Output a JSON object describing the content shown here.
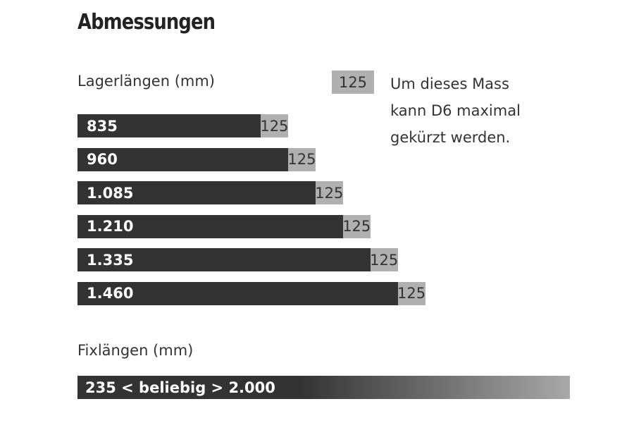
{
  "title": "Abmessungen",
  "colors": {
    "bar": "#333333",
    "extension": "#b0b0b0",
    "gradient_end": "#a8a8a8"
  },
  "legend": {
    "swatch_label": "125",
    "text_lines": [
      "Um dieses Mass",
      "kann D6 maximal",
      "gekürzt werden."
    ]
  },
  "chart_data": {
    "type": "bar",
    "orientation": "horizontal",
    "stacked": true,
    "title": "Lagerlängen (mm)",
    "categories": [
      "835",
      "960",
      "1.085",
      "1.210",
      "1.335",
      "1.460"
    ],
    "series": [
      {
        "values": [
          835,
          960,
          1085,
          1210,
          1335,
          1460
        ]
      },
      {
        "values": [
          125,
          125,
          125,
          125,
          125,
          125
        ]
      }
    ],
    "value_labels": [
      "835",
      "960",
      "1.085",
      "1.210",
      "1.335",
      "1.460"
    ],
    "extension_labels": [
      "125",
      "125",
      "125",
      "125",
      "125",
      "125"
    ]
  },
  "fixed": {
    "label": "Fixlängen (mm)",
    "bar_text": "235 < beliebig > 2.000"
  }
}
